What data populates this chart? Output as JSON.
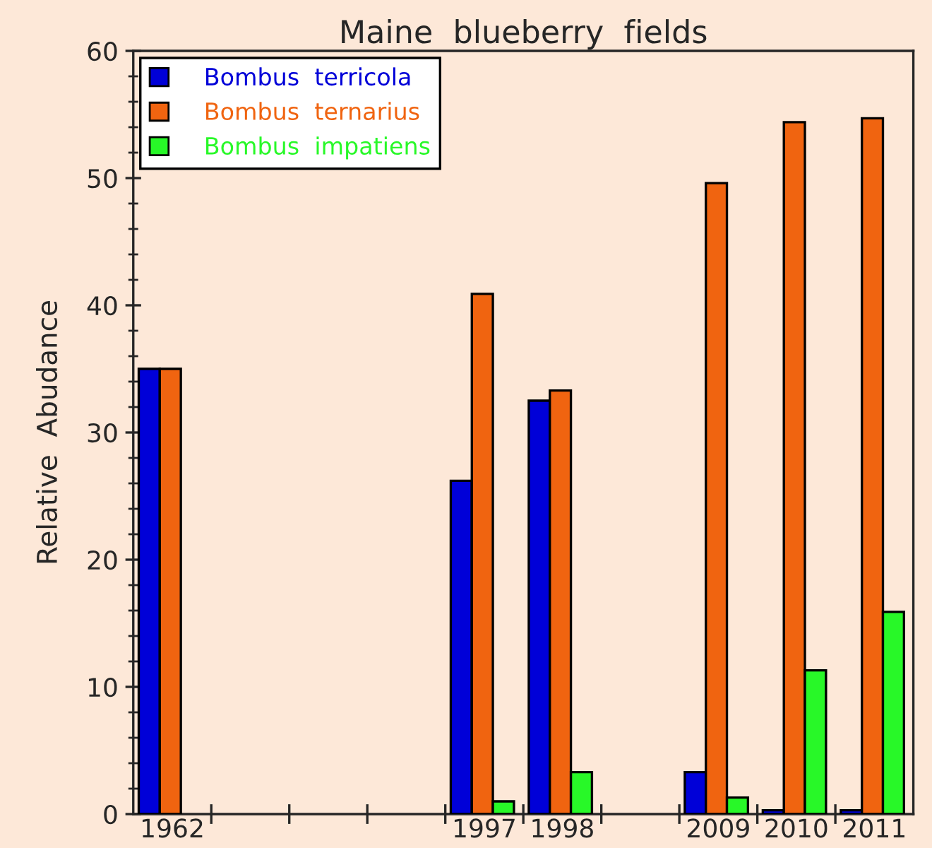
{
  "chart_data": {
    "type": "bar",
    "title": "Maine  blueberry  fields",
    "ylabel": "Relative  Abudance",
    "categories": [
      "1962",
      null,
      null,
      null,
      "1997",
      "1998",
      null,
      "2009",
      "2010",
      "2011"
    ],
    "series": [
      {
        "name": "Bombus  terricola",
        "color": "#0000d8",
        "values": [
          35,
          null,
          null,
          null,
          26.2,
          32.5,
          null,
          3.3,
          0.3,
          0.3
        ]
      },
      {
        "name": "Bombus  ternarius",
        "color": "#f06410",
        "values": [
          35,
          null,
          null,
          null,
          40.9,
          33.3,
          null,
          49.6,
          54.4,
          54.7
        ]
      },
      {
        "name": "Bombus  impatiens",
        "color": "#28f828",
        "values": [
          null,
          null,
          null,
          null,
          1.0,
          3.3,
          null,
          1.3,
          11.3,
          15.9
        ]
      }
    ],
    "ylim": [
      0,
      60
    ],
    "yticks": [
      0,
      10,
      20,
      30,
      40,
      50,
      60
    ],
    "grid": false,
    "legend": "top left"
  }
}
